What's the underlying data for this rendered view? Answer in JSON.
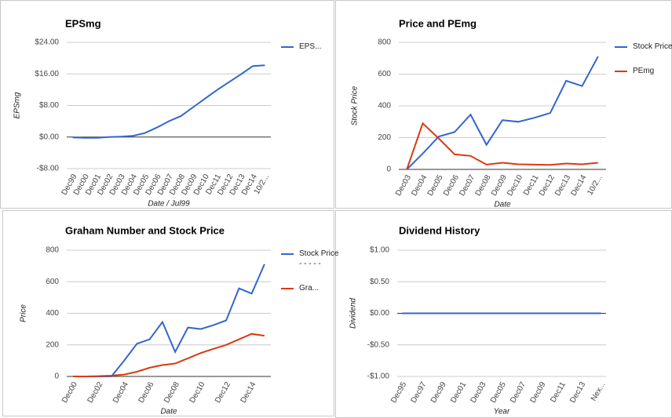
{
  "chart_data": [
    {
      "type": "line",
      "title": "EPSmg",
      "x_label": "Date / Jul99",
      "y_label": "EPSmg",
      "categories": [
        "Dec99",
        "Dec00",
        "Dec01",
        "Dec02",
        "Dec03",
        "Dec04",
        "Dec05",
        "Dec06",
        "Dec07",
        "Dec08",
        "Dec09",
        "Dec10",
        "Dec11",
        "Dec12",
        "Dec13",
        "Dec14",
        "10/2..."
      ],
      "series": [
        {
          "name": "EPS...",
          "color": "#3366cc",
          "values": [
            -0.1,
            -0.2,
            -0.2,
            0,
            0.1,
            0.3,
            1,
            2.4,
            4,
            5.3,
            7.5,
            9.7,
            11.9,
            13.9,
            15.9,
            18,
            18.2
          ]
        }
      ],
      "ylim": [
        -8,
        24
      ],
      "yticks": [
        {
          "value": -8,
          "label": "-$8.00"
        },
        {
          "value": 0,
          "label": "$0.00"
        },
        {
          "value": 8,
          "label": "$8.00"
        },
        {
          "value": 16,
          "label": "$16.00"
        },
        {
          "value": 24,
          "label": "$24.00"
        }
      ],
      "grid": true
    },
    {
      "type": "line",
      "title": "Price and PEmg",
      "x_label": "Date",
      "y_label": "Stock Price",
      "categories": [
        "Dec03",
        "Dec04",
        "Dec05",
        "Dec06",
        "Dec07",
        "Dec08",
        "Dec09",
        "Dec10",
        "Dec11",
        "Dec12",
        "Dec13",
        "Dec14",
        "10/2..."
      ],
      "series": [
        {
          "name": "Stock Price",
          "color": "#3366cc",
          "values": [
            0,
            100,
            207,
            235,
            345,
            155,
            310,
            300,
            325,
            355,
            558,
            525,
            711
          ]
        },
        {
          "name": "PEmg",
          "color": "#dc3912",
          "values": [
            0,
            290,
            195,
            95,
            85,
            30,
            42,
            32,
            30,
            28,
            37,
            32,
            42
          ]
        }
      ],
      "ylim": [
        0,
        800
      ],
      "yticks": [
        0,
        200,
        400,
        600,
        800
      ],
      "grid": true
    },
    {
      "type": "line",
      "title": "Graham Number and Stock Price",
      "x_label": "Date",
      "y_label": "Price",
      "categories": [
        "Dec00",
        null,
        "Dec02",
        null,
        "Dec04",
        null,
        "Dec06",
        null,
        "Dec08",
        null,
        "Dec10",
        null,
        "Dec12",
        null,
        "Dec14",
        null
      ],
      "series": [
        {
          "name": "Stock Price - - - - -",
          "color": "#3366cc",
          "values": [
            0,
            0,
            0,
            0,
            100,
            207,
            235,
            345,
            155,
            310,
            300,
            325,
            355,
            558,
            525,
            711
          ]
        },
        {
          "name": "Gra...",
          "color": "#dc3912",
          "values": [
            0,
            0,
            2,
            5,
            12,
            30,
            55,
            72,
            82,
            115,
            148,
            175,
            200,
            235,
            270,
            258
          ]
        }
      ],
      "ylim": [
        0,
        800
      ],
      "yticks": [
        0,
        200,
        400,
        600,
        800
      ],
      "grid": true
    },
    {
      "type": "line",
      "title": "Dividend History",
      "x_label": "Year",
      "y_label": "Dividend",
      "categories": [
        "Dec95",
        null,
        "Dec97",
        null,
        "Dec99",
        null,
        "Dec01",
        null,
        "Dec03",
        null,
        "Dec05",
        null,
        "Dec07",
        null,
        "Dec09",
        null,
        "Dec11",
        null,
        "Dec13",
        null,
        "Nex..."
      ],
      "values": [
        0,
        0,
        0,
        0,
        0,
        0,
        0,
        0,
        0,
        0,
        0,
        0,
        0,
        0,
        0,
        0,
        0,
        0,
        0,
        0,
        0
      ],
      "color": "#3366cc",
      "ylim": [
        -1,
        1
      ],
      "yticks": [
        {
          "value": -1,
          "label": "-$1.00"
        },
        {
          "value": -0.5,
          "label": "-$0.50"
        },
        {
          "value": 0,
          "label": "$0.00"
        },
        {
          "value": 0.5,
          "label": "$0.50"
        },
        {
          "value": 1,
          "label": "$1.00"
        }
      ],
      "grid": true
    }
  ]
}
